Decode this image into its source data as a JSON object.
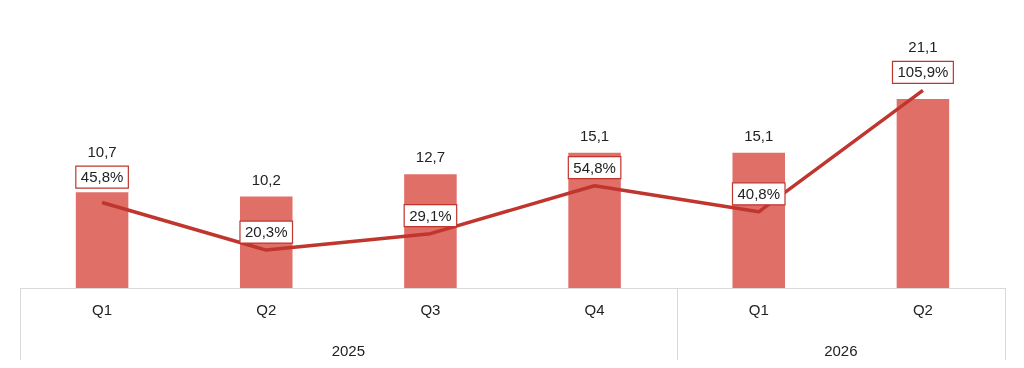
{
  "chart_data": {
    "type": "bar",
    "categories": [
      "Q1",
      "Q2",
      "Q3",
      "Q4",
      "Q1",
      "Q2"
    ],
    "series": [
      {
        "color": "#e06f68",
        "values": [
          10.7,
          10.2,
          12.7,
          15.1,
          15.1,
          21.1
        ],
        "value_labels": [
          "10,7",
          "10,2",
          "12,7",
          "15,1",
          "15,1",
          "21,1"
        ]
      },
      {
        "type": "line",
        "axis": "y2",
        "color": "#c0362f",
        "values": [
          45.8,
          20.3,
          29.1,
          54.8,
          40.8,
          105.9
        ],
        "value_labels": [
          "45,8%",
          "20,3%",
          "29,1%",
          "54,8%",
          "40,8%",
          "105,9%"
        ],
        "marker": "none"
      }
    ],
    "annotations": [
      "2025",
      "2026"
    ],
    "grid": false,
    "legend": false
  }
}
